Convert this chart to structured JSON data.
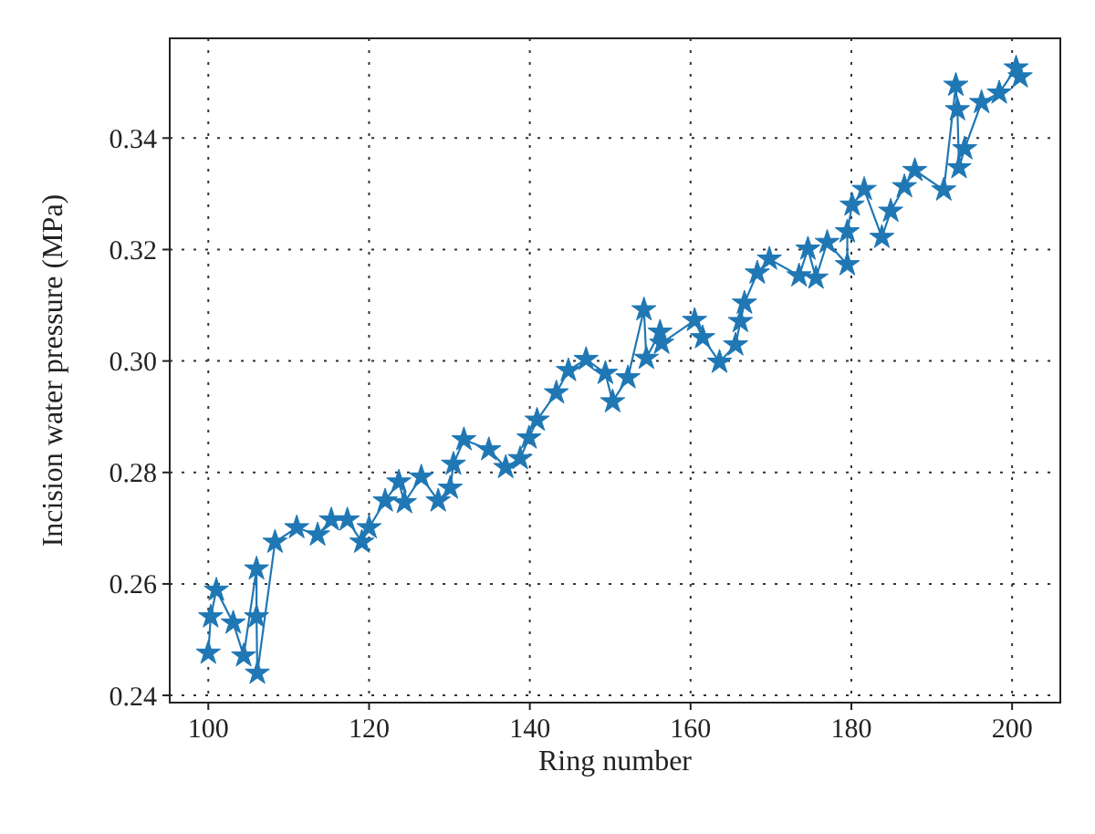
{
  "chart_data": {
    "type": "line",
    "xlabel": "Ring number",
    "ylabel": "Incision water pressure (MPa)",
    "xlim": [
      95.2,
      206
    ],
    "ylim": [
      0.2387,
      0.3579
    ],
    "xticks": [
      100,
      120,
      140,
      160,
      180,
      200
    ],
    "yticks": [
      {
        "value": 0.24,
        "label": "0.24"
      },
      {
        "value": 0.26,
        "label": "0.26"
      },
      {
        "value": 0.28,
        "label": "0.28"
      },
      {
        "value": 0.3,
        "label": "0.30"
      },
      {
        "value": 0.32,
        "label": "0.32"
      },
      {
        "value": 0.34,
        "label": "0.34"
      }
    ],
    "grid": true,
    "marker": "star",
    "line_style": "solid",
    "series": [
      {
        "color": "#1f77b4",
        "x": [
          100.0,
          100.3,
          101.0,
          103.1,
          104.4,
          106.0,
          106.0,
          106.1,
          108.3,
          111.0,
          113.6,
          115.3,
          117.3,
          119.1,
          120.0,
          122.0,
          123.7,
          124.4,
          126.5,
          128.6,
          130.1,
          130.5,
          131.8,
          134.9,
          137.0,
          138.8,
          139.9,
          140.9,
          143.3,
          144.8,
          147.0,
          149.4,
          150.3,
          152.2,
          154.2,
          154.5,
          156.2,
          156.4,
          160.5,
          161.5,
          163.6,
          165.6,
          166.2,
          166.7,
          168.3,
          169.8,
          173.5,
          174.6,
          175.6,
          177.0,
          179.5,
          179.5,
          180.1,
          181.6,
          183.8,
          184.9,
          186.6,
          187.9,
          191.5,
          193.0,
          193.2,
          193.4,
          194.1,
          196.2,
          198.4,
          200.5,
          201.0
        ],
        "values": [
          0.2476,
          0.2541,
          0.2589,
          0.253,
          0.2471,
          0.2627,
          0.2541,
          0.244,
          0.2675,
          0.2701,
          0.2688,
          0.2715,
          0.2715,
          0.2675,
          0.2701,
          0.2749,
          0.2783,
          0.2746,
          0.2792,
          0.2749,
          0.2772,
          0.2815,
          0.2859,
          0.2841,
          0.2809,
          0.2825,
          0.2862,
          0.2894,
          0.2943,
          0.2983,
          0.3003,
          0.2978,
          0.2927,
          0.297,
          0.3092,
          0.3005,
          0.3052,
          0.3032,
          0.3073,
          0.3042,
          0.2998,
          0.3029,
          0.3071,
          0.3104,
          0.3158,
          0.3183,
          0.3153,
          0.3201,
          0.3149,
          0.3213,
          0.3173,
          0.3232,
          0.328,
          0.3308,
          0.3222,
          0.3269,
          0.3313,
          0.3342,
          0.3307,
          0.3495,
          0.3451,
          0.3347,
          0.3381,
          0.3464,
          0.3481,
          0.3526,
          0.351
        ]
      }
    ]
  }
}
